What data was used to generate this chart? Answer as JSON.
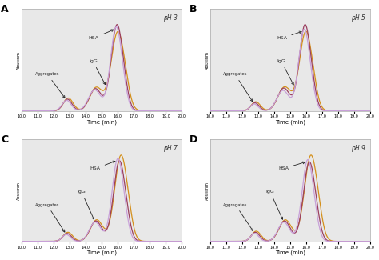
{
  "panels": [
    "A",
    "B",
    "C",
    "D"
  ],
  "ph_labels": [
    "pH 3",
    "pH 5",
    "pH 7",
    "pH 9"
  ],
  "x_min": 10.0,
  "x_max": 20.0,
  "x_ticks": [
    10.0,
    11.0,
    12.0,
    13.0,
    14.0,
    15.0,
    16.0,
    17.0,
    18.0,
    19.0,
    20.0
  ],
  "x_label": "Time (min)",
  "y_label": "Abs₂₈₀nm",
  "line_colors": [
    "#c8a0d8",
    "#9b4060",
    "#d4901c"
  ],
  "bg_color": "#e8e8e8",
  "annot_color": "#222222"
}
